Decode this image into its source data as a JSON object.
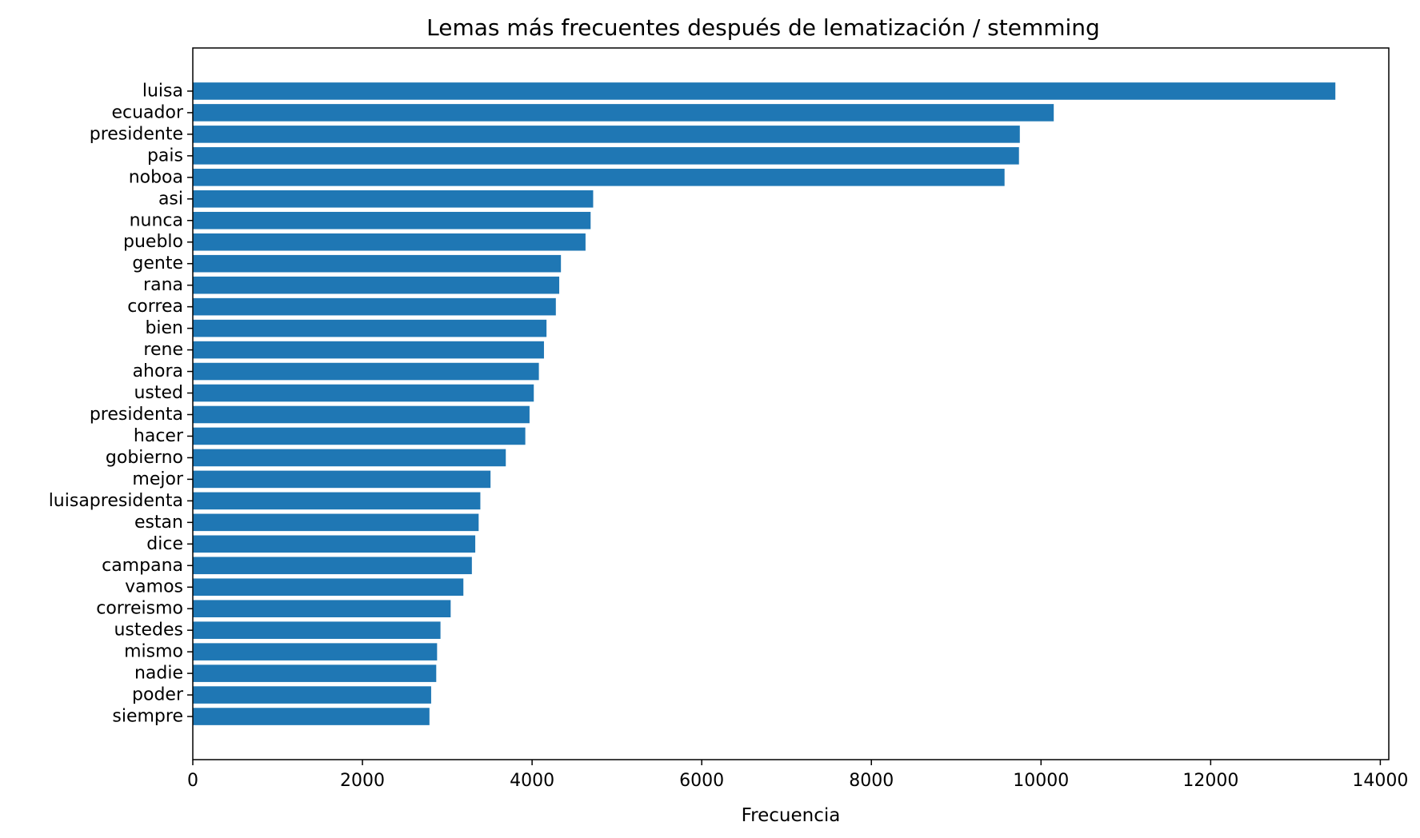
{
  "chart_data": {
    "type": "bar",
    "orientation": "horizontal",
    "title": "Lemas más frecuentes después de lematización / stemming",
    "xlabel": "Frecuencia",
    "ylabel": "",
    "xlim": [
      0,
      14100
    ],
    "xticks": [
      0,
      2000,
      4000,
      6000,
      8000,
      10000,
      12000,
      14000
    ],
    "grid": false,
    "bar_color": "#1f77b4",
    "categories": [
      "luisa",
      "ecuador",
      "presidente",
      "pais",
      "noboa",
      "asi",
      "nunca",
      "pueblo",
      "gente",
      "rana",
      "correa",
      "bien",
      "rene",
      "ahora",
      "usted",
      "presidenta",
      "hacer",
      "gobierno",
      "mejor",
      "luisapresidenta",
      "estan",
      "dice",
      "campana",
      "vamos",
      "correismo",
      "ustedes",
      "mismo",
      "nadie",
      "poder",
      "siempre"
    ],
    "values": [
      13470,
      10150,
      9750,
      9740,
      9570,
      4720,
      4690,
      4630,
      4340,
      4320,
      4280,
      4170,
      4140,
      4080,
      4020,
      3970,
      3920,
      3690,
      3510,
      3390,
      3370,
      3330,
      3290,
      3190,
      3040,
      2920,
      2880,
      2870,
      2810,
      2790
    ]
  }
}
